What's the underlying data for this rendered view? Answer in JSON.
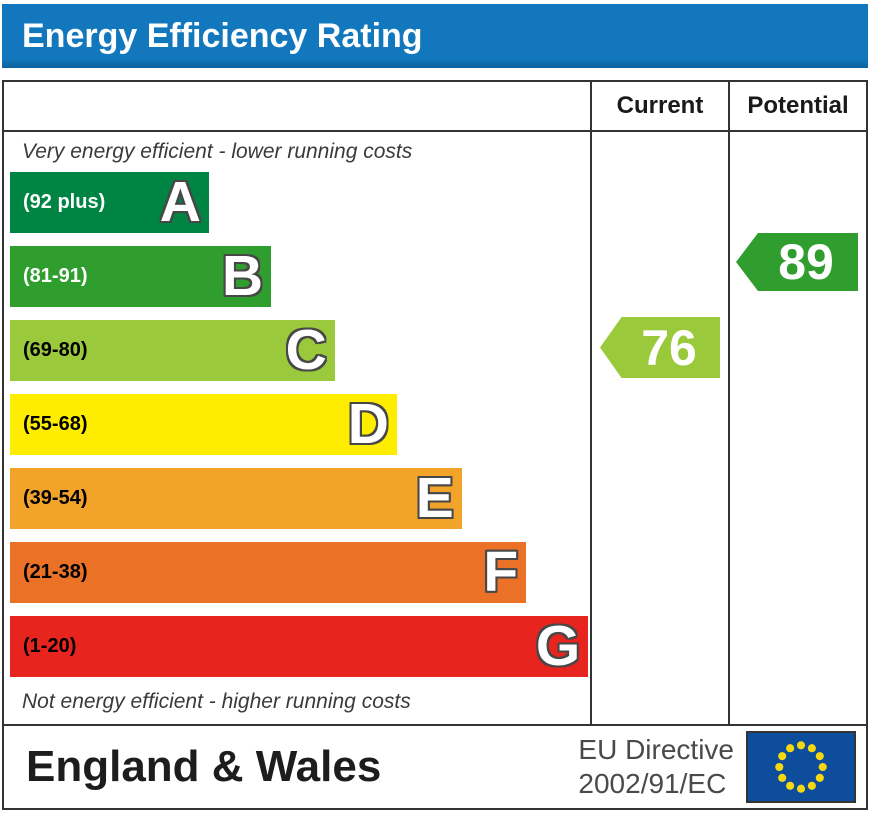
{
  "title": "Energy Efficiency Rating",
  "header_color": "#1277bd",
  "table": {
    "current_header": "Current",
    "potential_header": "Potential"
  },
  "notes": {
    "top": "Very energy efficient - lower running costs",
    "bottom": "Not energy efficient - higher running costs"
  },
  "bands": [
    {
      "letter": "A",
      "range": "(92 plus)",
      "color": "#008443",
      "text_color": "#ffffff",
      "width_pct": 34.3
    },
    {
      "letter": "B",
      "range": "(81-91)",
      "color": "#2f9e2e",
      "text_color": "#ffffff",
      "width_pct": 45.0
    },
    {
      "letter": "C",
      "range": "(69-80)",
      "color": "#9aca3c",
      "text_color": "#000000",
      "width_pct": 56.0
    },
    {
      "letter": "D",
      "range": "(55-68)",
      "color": "#ffed00",
      "text_color": "#000000",
      "width_pct": 66.7
    },
    {
      "letter": "E",
      "range": "(39-54)",
      "color": "#f2a32a",
      "text_color": "#000000",
      "width_pct": 77.9
    },
    {
      "letter": "F",
      "range": "(21-38)",
      "color": "#ea7125",
      "text_color": "#000000",
      "width_pct": 89.0
    },
    {
      "letter": "G",
      "range": "(1-20)",
      "color": "#e8241f",
      "text_color": "#000000",
      "width_pct": 99.7
    }
  ],
  "ratings": {
    "current": {
      "value": "76",
      "band": "C",
      "color": "#9aca3c"
    },
    "potential": {
      "value": "89",
      "band": "B",
      "color": "#2f9e2e"
    }
  },
  "footer": {
    "region": "England & Wales",
    "directive_line1": "EU Directive",
    "directive_line2": "2002/91/EC",
    "flag": {
      "bg": "#0e4c9c",
      "star_color": "#f5d910"
    }
  },
  "chart_data": {
    "type": "bar",
    "title": "Energy Efficiency Rating",
    "orientation": "horizontal",
    "categories": [
      "A",
      "B",
      "C",
      "D",
      "E",
      "F",
      "G"
    ],
    "category_ranges": [
      "92 plus",
      "81-91",
      "69-80",
      "55-68",
      "39-54",
      "21-38",
      "1-20"
    ],
    "series": [
      {
        "name": "band_relative_length_pct",
        "values": [
          34.3,
          45.0,
          56.0,
          66.7,
          77.9,
          89.0,
          99.7
        ]
      }
    ],
    "band_colors": [
      "#008443",
      "#2f9e2e",
      "#9aca3c",
      "#ffed00",
      "#f2a32a",
      "#ea7125",
      "#e8241f"
    ],
    "markers": [
      {
        "name": "Current",
        "value": 76,
        "band": "C"
      },
      {
        "name": "Potential",
        "value": 89,
        "band": "B"
      }
    ],
    "annotations": [
      "Very energy efficient - lower running costs",
      "Not energy efficient - higher running costs",
      "England & Wales",
      "EU Directive 2002/91/EC"
    ],
    "axis_range": [
      1,
      100
    ],
    "grid": false,
    "legend_position": "none"
  }
}
